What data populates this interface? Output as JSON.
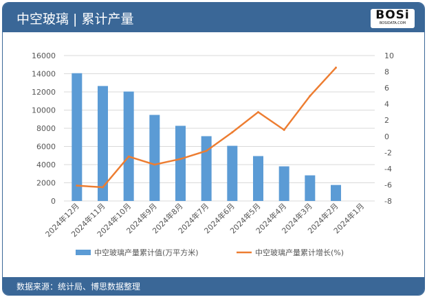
{
  "header": {
    "title": "中空玻璃 | 累计产量",
    "logo_text": "BOSi",
    "logo_sub": "BOSIDATA.COM"
  },
  "footer": {
    "source": "数据来源：统计局、博思数据整理"
  },
  "colors": {
    "bar": "#5b9bd5",
    "line": "#ed7d31",
    "header": "#3a6797"
  },
  "chart_data": {
    "type": "bar+line",
    "categories": [
      "2024年12月",
      "2024年11月",
      "2024年10月",
      "2024年9月",
      "2024年8月",
      "2024年7月",
      "2024年6月",
      "2024年5月",
      "2024年4月",
      "2024年3月",
      "2024年2月",
      "2024年1月"
    ],
    "series": [
      {
        "name": "中空玻璃产量累计值(万平方米)",
        "type": "bar",
        "axis": "left",
        "values": [
          14060,
          12650,
          12040,
          9470,
          8270,
          7130,
          6070,
          4940,
          3810,
          2820,
          1760,
          null
        ]
      },
      {
        "name": "中空玻璃产量累计增长(%)",
        "type": "line",
        "axis": "right",
        "values": [
          -6.1,
          -6.3,
          -2.5,
          -3.5,
          -2.8,
          -1.8,
          0.5,
          3.0,
          0.8,
          5.0,
          8.5,
          null
        ]
      }
    ],
    "left_axis": {
      "ylim": [
        0,
        16000
      ],
      "ticks": [
        0,
        2000,
        4000,
        6000,
        8000,
        10000,
        12000,
        14000,
        16000
      ]
    },
    "right_axis": {
      "ylim": [
        -8,
        10
      ],
      "ticks": [
        -8,
        -6,
        -4,
        -2,
        0,
        2,
        4,
        6,
        8,
        10
      ]
    },
    "grid": true,
    "legend": "bottom"
  }
}
